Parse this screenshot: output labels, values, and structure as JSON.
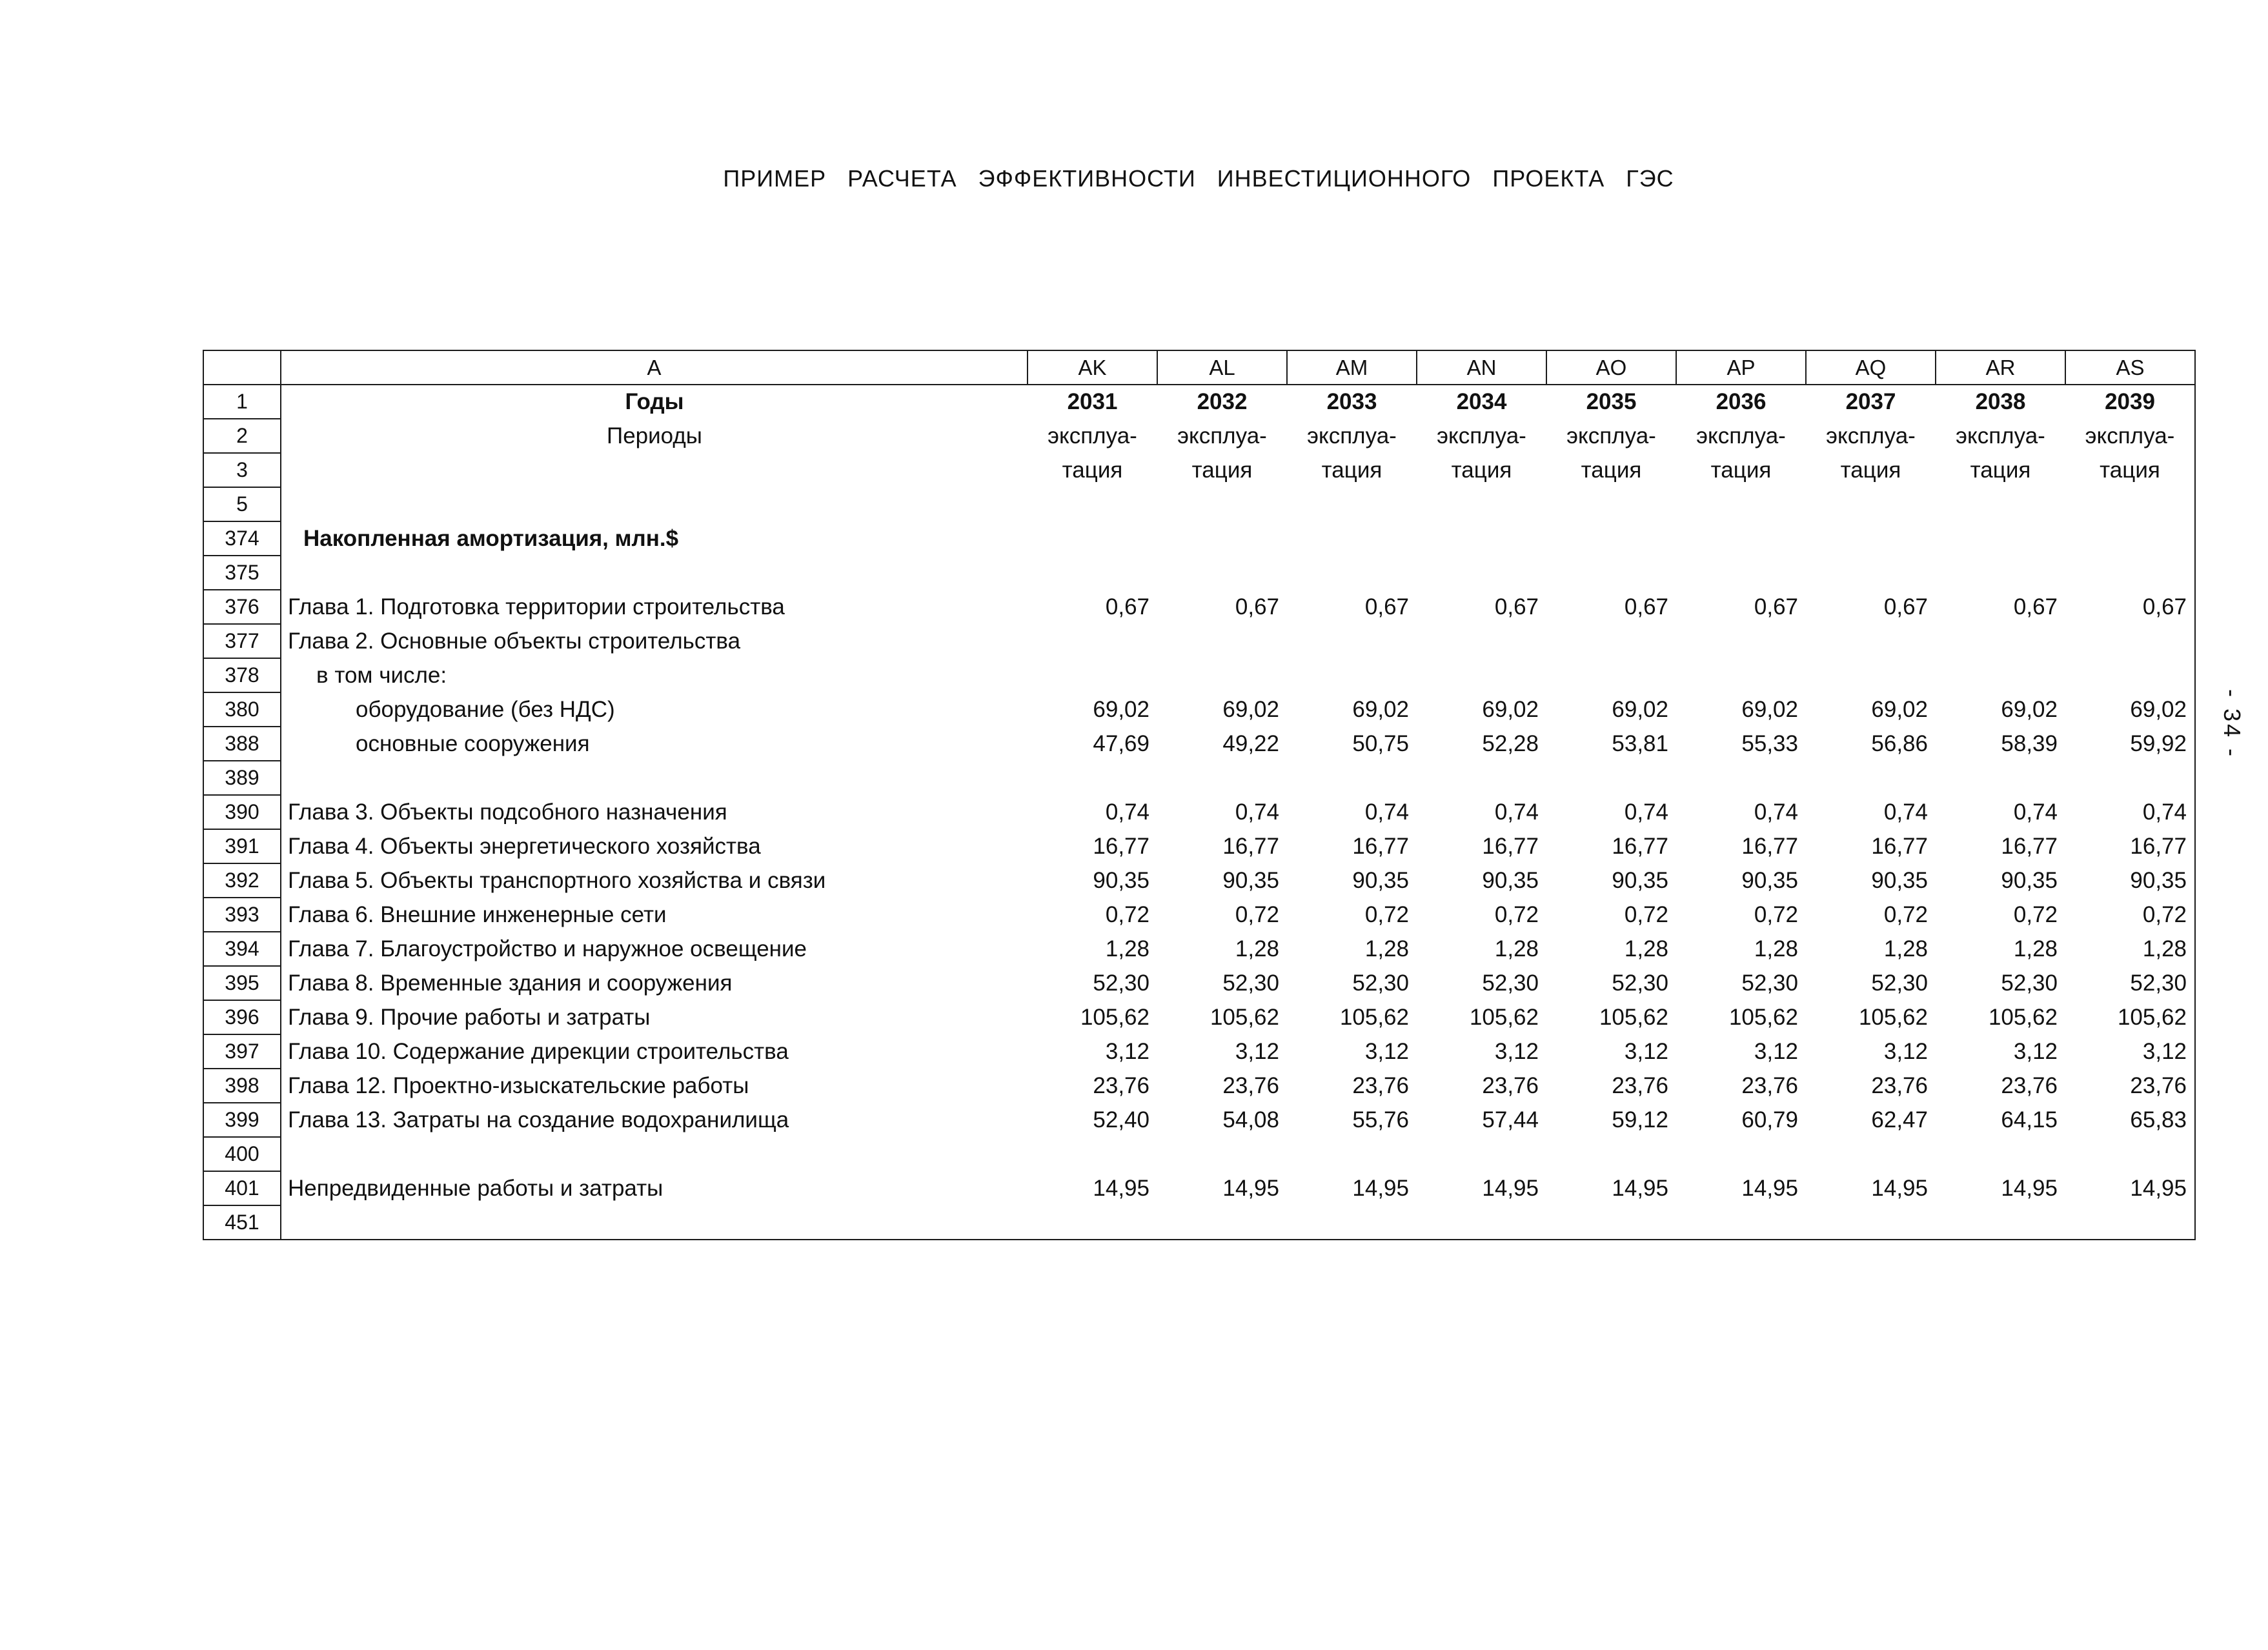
{
  "page": {
    "title": "ПРИМЕР РАСЧЕТА ЭФФЕКТИВНОСТИ ИНВЕСТИЦИОННОГО ПРОЕКТА ГЭС",
    "side_page_number": "- 34 -"
  },
  "table": {
    "label_header": "A",
    "columns": [
      "AK",
      "AL",
      "AM",
      "AN",
      "AO",
      "AP",
      "AQ",
      "AR",
      "AS"
    ],
    "rows": [
      {
        "num": "1",
        "label": "Годы",
        "labelAlign": "center",
        "labelBold": true,
        "values": [
          "2031",
          "2032",
          "2033",
          "2034",
          "2035",
          "2036",
          "2037",
          "2038",
          "2039"
        ],
        "valuesAlign": "center",
        "valuesBold": true
      },
      {
        "num": "2",
        "label": "Периоды",
        "labelAlign": "center",
        "values": [
          "эксплуа-",
          "эксплуа-",
          "эксплуа-",
          "эксплуа-",
          "эксплуа-",
          "эксплуа-",
          "эксплуа-",
          "эксплуа-",
          "эксплуа-"
        ],
        "valuesAlign": "center"
      },
      {
        "num": "3",
        "label": "",
        "values": [
          "тация",
          "тация",
          "тация",
          "тация",
          "тация",
          "тация",
          "тация",
          "тация",
          "тация"
        ],
        "valuesAlign": "center"
      },
      {
        "num": "5",
        "label": "",
        "values": []
      },
      {
        "num": "374",
        "label": "Накопленная амортизация, млн.$",
        "labelBold": true,
        "indent": 34,
        "values": []
      },
      {
        "num": "375",
        "label": "",
        "values": []
      },
      {
        "num": "376",
        "label": "Глава 1. Подготовка территории строительства",
        "values": [
          "0,67",
          "0,67",
          "0,67",
          "0,67",
          "0,67",
          "0,67",
          "0,67",
          "0,67",
          "0,67"
        ]
      },
      {
        "num": "377",
        "label": "Глава 2. Основные объекты строительства",
        "values": []
      },
      {
        "num": "378",
        "label": "в том числе:",
        "indent": 54,
        "values": []
      },
      {
        "num": "380",
        "label": "оборудование (без НДС)",
        "indent": 115,
        "values": [
          "69,02",
          "69,02",
          "69,02",
          "69,02",
          "69,02",
          "69,02",
          "69,02",
          "69,02",
          "69,02"
        ]
      },
      {
        "num": "388",
        "label": "основные сооружения",
        "indent": 115,
        "values": [
          "47,69",
          "49,22",
          "50,75",
          "52,28",
          "53,81",
          "55,33",
          "56,86",
          "58,39",
          "59,92"
        ]
      },
      {
        "num": "389",
        "label": "",
        "values": []
      },
      {
        "num": "390",
        "label": "Глава 3. Объекты подсобного назначения",
        "values": [
          "0,74",
          "0,74",
          "0,74",
          "0,74",
          "0,74",
          "0,74",
          "0,74",
          "0,74",
          "0,74"
        ]
      },
      {
        "num": "391",
        "label": "Глава 4. Объекты энергетического хозяйства",
        "values": [
          "16,77",
          "16,77",
          "16,77",
          "16,77",
          "16,77",
          "16,77",
          "16,77",
          "16,77",
          "16,77"
        ]
      },
      {
        "num": "392",
        "label": "Глава 5. Объекты транспортного хозяйства и связи",
        "values": [
          "90,35",
          "90,35",
          "90,35",
          "90,35",
          "90,35",
          "90,35",
          "90,35",
          "90,35",
          "90,35"
        ]
      },
      {
        "num": "393",
        "label": "Глава 6. Внешние инженерные сети",
        "values": [
          "0,72",
          "0,72",
          "0,72",
          "0,72",
          "0,72",
          "0,72",
          "0,72",
          "0,72",
          "0,72"
        ]
      },
      {
        "num": "394",
        "label": "Глава 7. Благоустройство и наружное освещение",
        "values": [
          "1,28",
          "1,28",
          "1,28",
          "1,28",
          "1,28",
          "1,28",
          "1,28",
          "1,28",
          "1,28"
        ]
      },
      {
        "num": "395",
        "label": "Глава 8. Временные здания и сооружения",
        "values": [
          "52,30",
          "52,30",
          "52,30",
          "52,30",
          "52,30",
          "52,30",
          "52,30",
          "52,30",
          "52,30"
        ]
      },
      {
        "num": "396",
        "label": "Глава 9. Прочие работы и затраты",
        "values": [
          "105,62",
          "105,62",
          "105,62",
          "105,62",
          "105,62",
          "105,62",
          "105,62",
          "105,62",
          "105,62"
        ]
      },
      {
        "num": "397",
        "label": "Глава 10. Содержание дирекции строительства",
        "values": [
          "3,12",
          "3,12",
          "3,12",
          "3,12",
          "3,12",
          "3,12",
          "3,12",
          "3,12",
          "3,12"
        ]
      },
      {
        "num": "398",
        "label": "Глава 12. Проектно-изыскательские работы",
        "values": [
          "23,76",
          "23,76",
          "23,76",
          "23,76",
          "23,76",
          "23,76",
          "23,76",
          "23,76",
          "23,76"
        ]
      },
      {
        "num": "399",
        "label": "Глава 13. Затраты на создание водохранилища",
        "values": [
          "52,40",
          "54,08",
          "55,76",
          "57,44",
          "59,12",
          "60,79",
          "62,47",
          "64,15",
          "65,83"
        ]
      },
      {
        "num": "400",
        "label": "",
        "values": []
      },
      {
        "num": "401",
        "label": "Непредвиденные работы и затраты",
        "values": [
          "14,95",
          "14,95",
          "14,95",
          "14,95",
          "14,95",
          "14,95",
          "14,95",
          "14,95",
          "14,95"
        ]
      },
      {
        "num": "451",
        "label": "",
        "values": []
      }
    ]
  }
}
